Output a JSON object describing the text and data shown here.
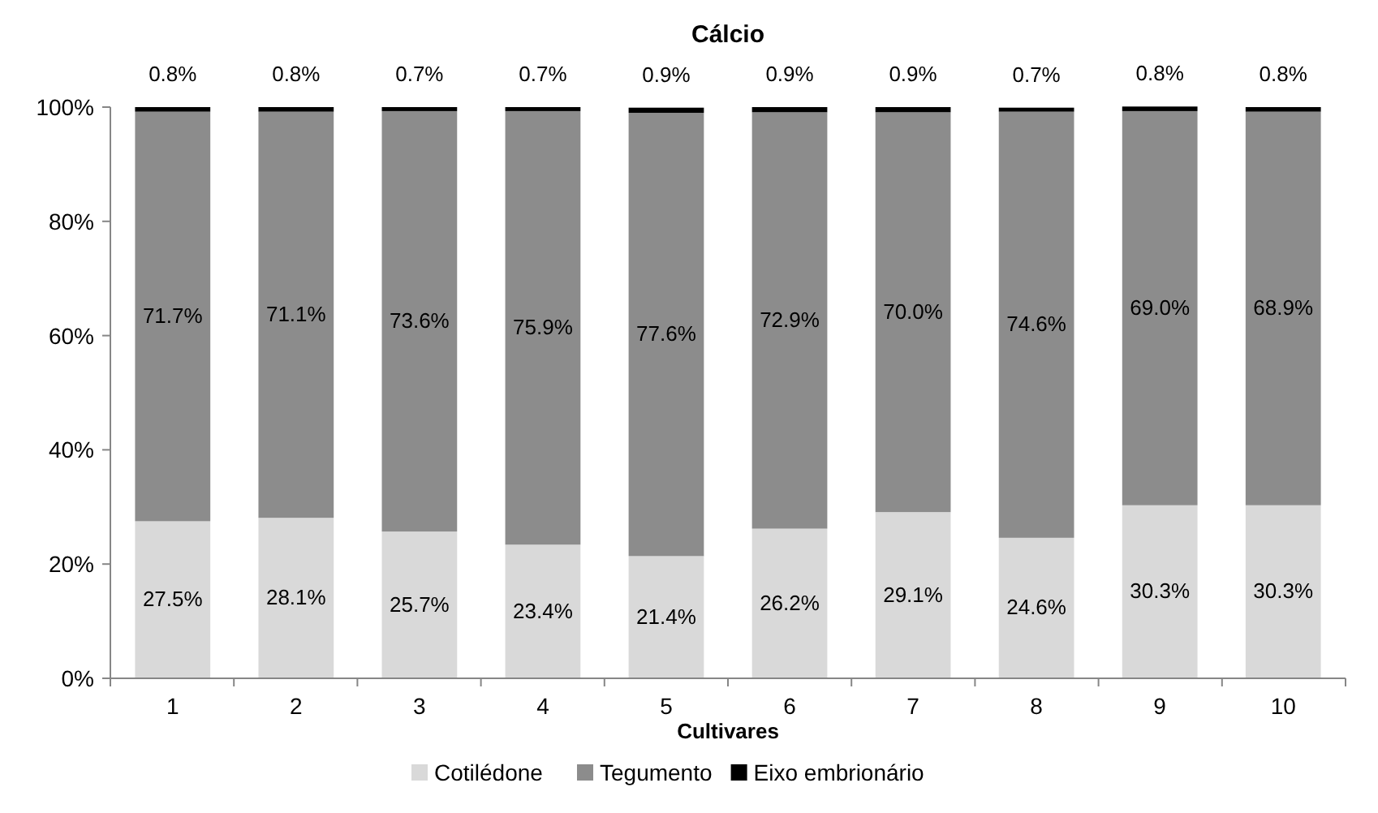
{
  "chart_data": {
    "type": "bar",
    "title": "Cálcio",
    "xlabel": "Cultivares",
    "stacked": true,
    "legend": "bottom",
    "grid": false,
    "categories": [
      "1",
      "2",
      "3",
      "4",
      "5",
      "6",
      "7",
      "8",
      "9",
      "10"
    ],
    "ylim": [
      0,
      100
    ],
    "yticks": [
      {
        "value": 0,
        "label": "0%"
      },
      {
        "value": 20,
        "label": "20%"
      },
      {
        "value": 40,
        "label": "40%"
      },
      {
        "value": 60,
        "label": "60%"
      },
      {
        "value": 80,
        "label": "80%"
      },
      {
        "value": 100,
        "label": "100%"
      }
    ],
    "series": [
      {
        "name": "Cotilédone",
        "color": "#d9d9d9",
        "values": [
          27.5,
          28.1,
          25.7,
          23.4,
          21.4,
          26.2,
          29.1,
          24.6,
          30.3,
          30.3
        ],
        "value_labels": [
          "27.5%",
          "28.1%",
          "25.7%",
          "23.4%",
          "21.4%",
          "26.2%",
          "29.1%",
          "24.6%",
          "30.3%",
          "30.3%"
        ]
      },
      {
        "name": "Tegumento",
        "color": "#8c8c8c",
        "values": [
          71.7,
          71.1,
          73.6,
          75.9,
          77.6,
          72.9,
          70.0,
          74.6,
          69.0,
          68.9
        ],
        "value_labels": [
          "71.7%",
          "71.1%",
          "73.6%",
          "75.9%",
          "77.6%",
          "72.9%",
          "70.0%",
          "74.6%",
          "69.0%",
          "68.9%"
        ]
      },
      {
        "name": "Eixo embrionário",
        "color": "#000000",
        "values": [
          0.8,
          0.8,
          0.7,
          0.7,
          0.9,
          0.9,
          0.9,
          0.7,
          0.8,
          0.8
        ],
        "value_labels": [
          "0.8%",
          "0.8%",
          "0.7%",
          "0.7%",
          "0.9%",
          "0.9%",
          "0.9%",
          "0.7%",
          "0.8%",
          "0.8%"
        ]
      }
    ]
  }
}
